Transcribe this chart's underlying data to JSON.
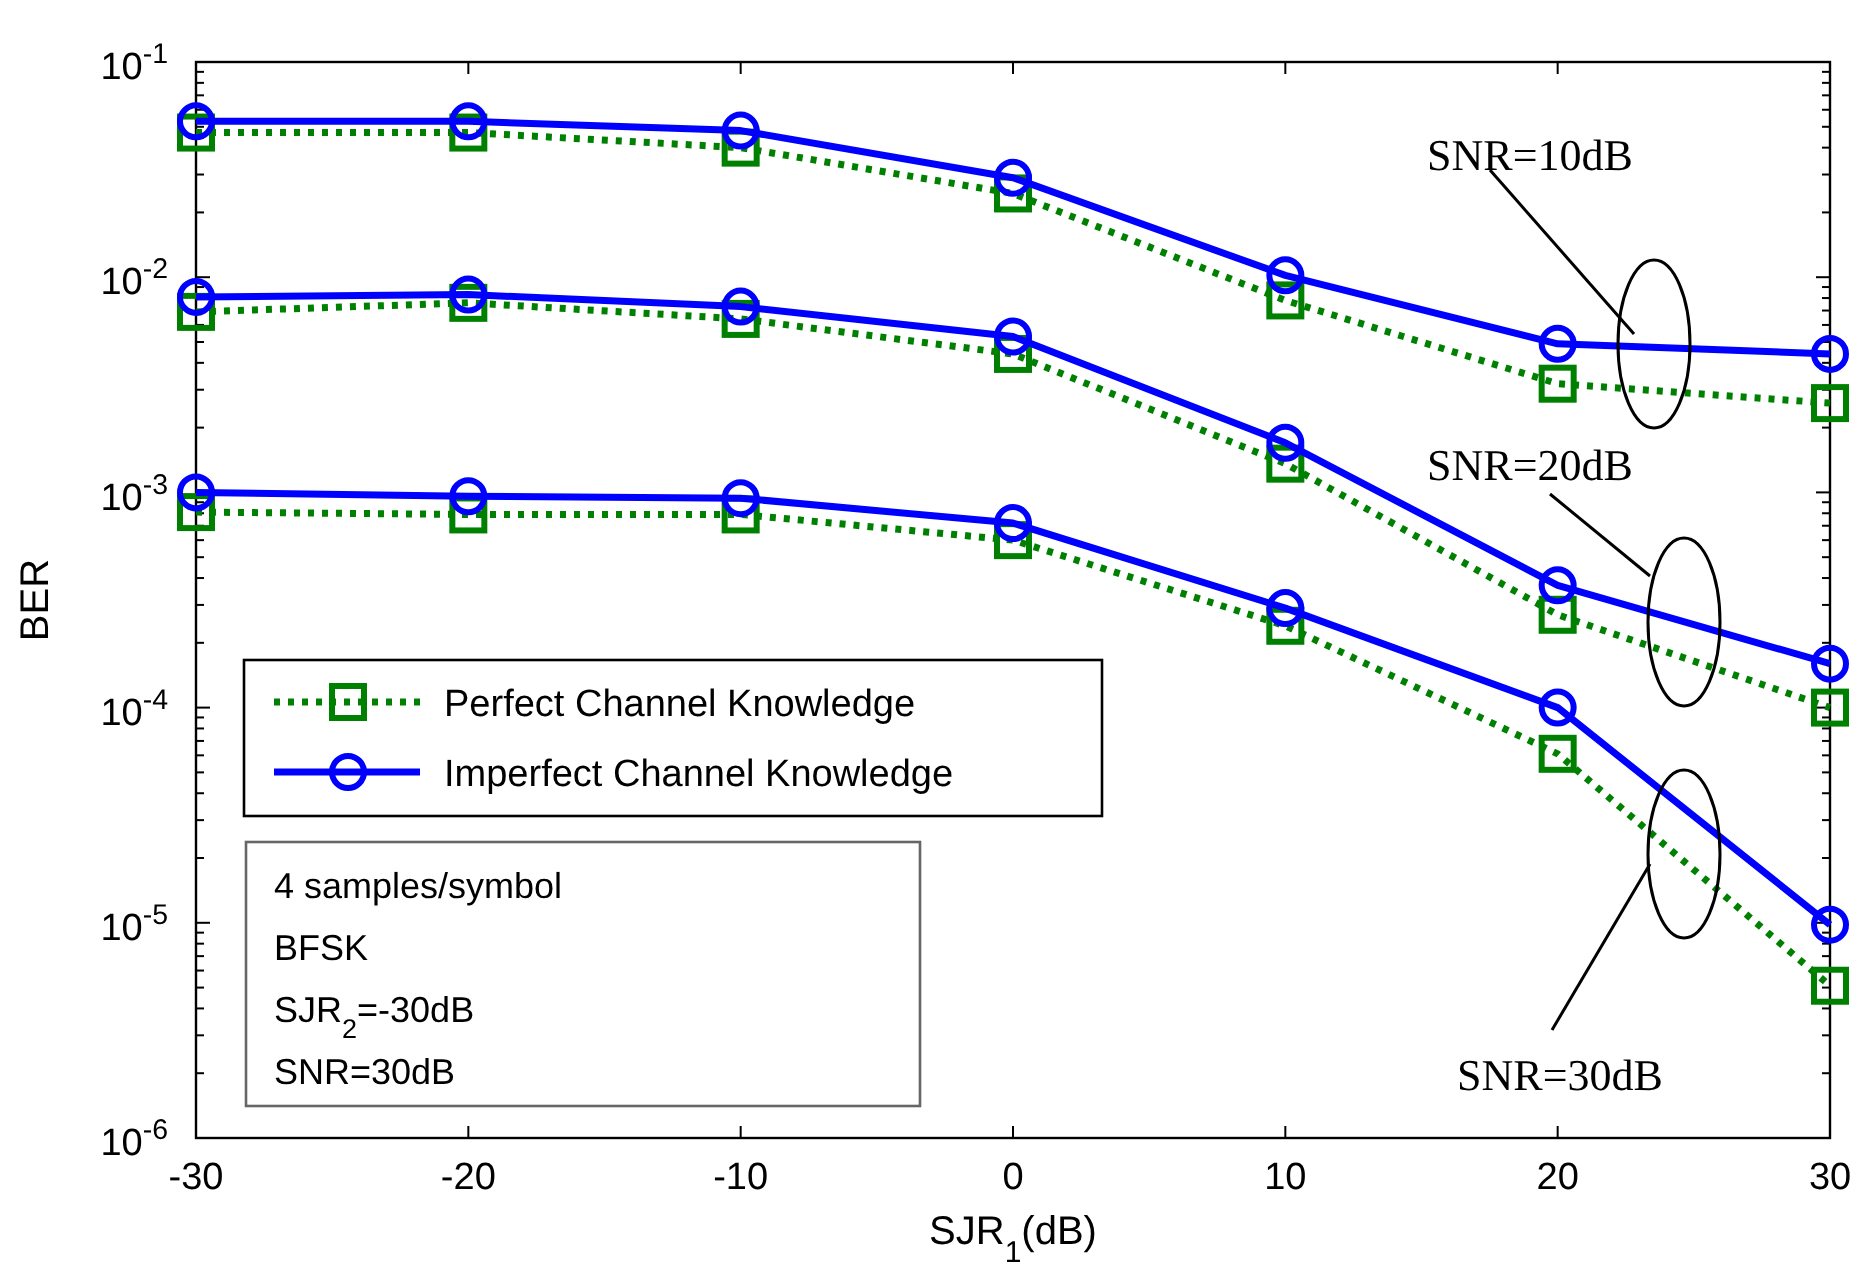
{
  "chart_data": {
    "type": "line",
    "xlabel": "SJR$_{1}$(dB)",
    "ylabel": "BER",
    "log": "y",
    "grid": false,
    "legend": "left",
    "x": [
      -30,
      -20,
      -10,
      0,
      10,
      20,
      30
    ],
    "xlim": [
      -30,
      30
    ],
    "xticks": [
      -30,
      -20,
      -10,
      0,
      10,
      20,
      30
    ],
    "ylim": [
      1e-06,
      0.1
    ],
    "yticks": [
      {
        "value": 1e-06,
        "label": "10$^{-6}$"
      },
      {
        "value": 2e-06,
        "label": null
      },
      {
        "value": 3e-06,
        "label": null
      },
      {
        "value": 4e-06,
        "label": null
      },
      {
        "value": 5e-06,
        "label": null
      },
      {
        "value": 6e-06,
        "label": null
      },
      {
        "value": 7e-06,
        "label": null
      },
      {
        "value": 8e-06,
        "label": null
      },
      {
        "value": 9e-06,
        "label": null
      },
      {
        "value": 1e-05,
        "label": "10$^{-5}$"
      },
      {
        "value": 2e-05,
        "label": null
      },
      {
        "value": 3e-05,
        "label": null
      },
      {
        "value": 4e-05,
        "label": null
      },
      {
        "value": 5e-05,
        "label": null
      },
      {
        "value": 6e-05,
        "label": null
      },
      {
        "value": 7e-05,
        "label": null
      },
      {
        "value": 8e-05,
        "label": null
      },
      {
        "value": 9e-05,
        "label": null
      },
      {
        "value": 0.0001,
        "label": "10$^{-4}$"
      },
      {
        "value": 0.0002,
        "label": null
      },
      {
        "value": 0.0003,
        "label": null
      },
      {
        "value": 0.0004,
        "label": null
      },
      {
        "value": 0.0005,
        "label": null
      },
      {
        "value": 0.0006,
        "label": null
      },
      {
        "value": 0.0007,
        "label": null
      },
      {
        "value": 0.0008,
        "label": null
      },
      {
        "value": 0.0009,
        "label": null
      },
      {
        "value": 0.001,
        "label": "10$^{-3}$"
      },
      {
        "value": 0.002,
        "label": null
      },
      {
        "value": 0.003,
        "label": null
      },
      {
        "value": 0.004,
        "label": null
      },
      {
        "value": 0.005,
        "label": null
      },
      {
        "value": 0.006,
        "label": null
      },
      {
        "value": 0.007,
        "label": null
      },
      {
        "value": 0.008,
        "label": null
      },
      {
        "value": 0.009,
        "label": null
      },
      {
        "value": 0.01,
        "label": "10$^{-2}$"
      },
      {
        "value": 0.02,
        "label": null
      },
      {
        "value": 0.03,
        "label": null
      },
      {
        "value": 0.04,
        "label": null
      },
      {
        "value": 0.05,
        "label": null
      },
      {
        "value": 0.06,
        "label": null
      },
      {
        "value": 0.07,
        "label": null
      },
      {
        "value": 0.08,
        "label": null
      },
      {
        "value": 0.09,
        "label": null
      },
      {
        "value": 0.1,
        "label": "10$^{-1}$"
      }
    ],
    "series": [
      {
        "name": "Perfect Channel Knowledge",
        "color": "#008000",
        "marker": "square",
        "line_style": "dotted",
        "values": [
          0.047,
          0.047,
          0.04,
          0.0245,
          0.0078,
          0.0032,
          0.0026
        ]
      },
      {
        "name": "Imperfect Channel Knowledge",
        "color": "#0000ff",
        "marker": "circle",
        "line_style": "solid",
        "values": [
          0.053,
          0.053,
          0.048,
          0.029,
          0.0102,
          0.0049,
          0.0044
        ]
      },
      {
        "color": "#008000",
        "marker": "square",
        "line_style": "dotted",
        "values": [
          0.0069,
          0.0076,
          0.0064,
          0.0044,
          0.00136,
          0.00027,
          0.0001
        ]
      },
      {
        "color": "#0000ff",
        "marker": "circle",
        "line_style": "solid",
        "values": [
          0.0081,
          0.0083,
          0.0073,
          0.0053,
          0.0017,
          0.00037,
          0.00016
        ]
      },
      {
        "color": "#008000",
        "marker": "square",
        "line_style": "dotted",
        "values": [
          0.00081,
          0.00079,
          0.00079,
          0.0006,
          0.00024,
          6.1e-05,
          5.1e-06
        ]
      },
      {
        "color": "#0000ff",
        "marker": "circle",
        "line_style": "solid",
        "values": [
          0.001,
          0.00096,
          0.00094,
          0.00072,
          0.00029,
          0.0001,
          9.8e-06
        ]
      }
    ],
    "annotations": [
      "SNR=10dB",
      "SNR=20dB",
      "SNR=30dB",
      "4 samples/symbol",
      "BFSK",
      "SJR$_{2}$=-30dB",
      "SNR=30dB"
    ]
  }
}
